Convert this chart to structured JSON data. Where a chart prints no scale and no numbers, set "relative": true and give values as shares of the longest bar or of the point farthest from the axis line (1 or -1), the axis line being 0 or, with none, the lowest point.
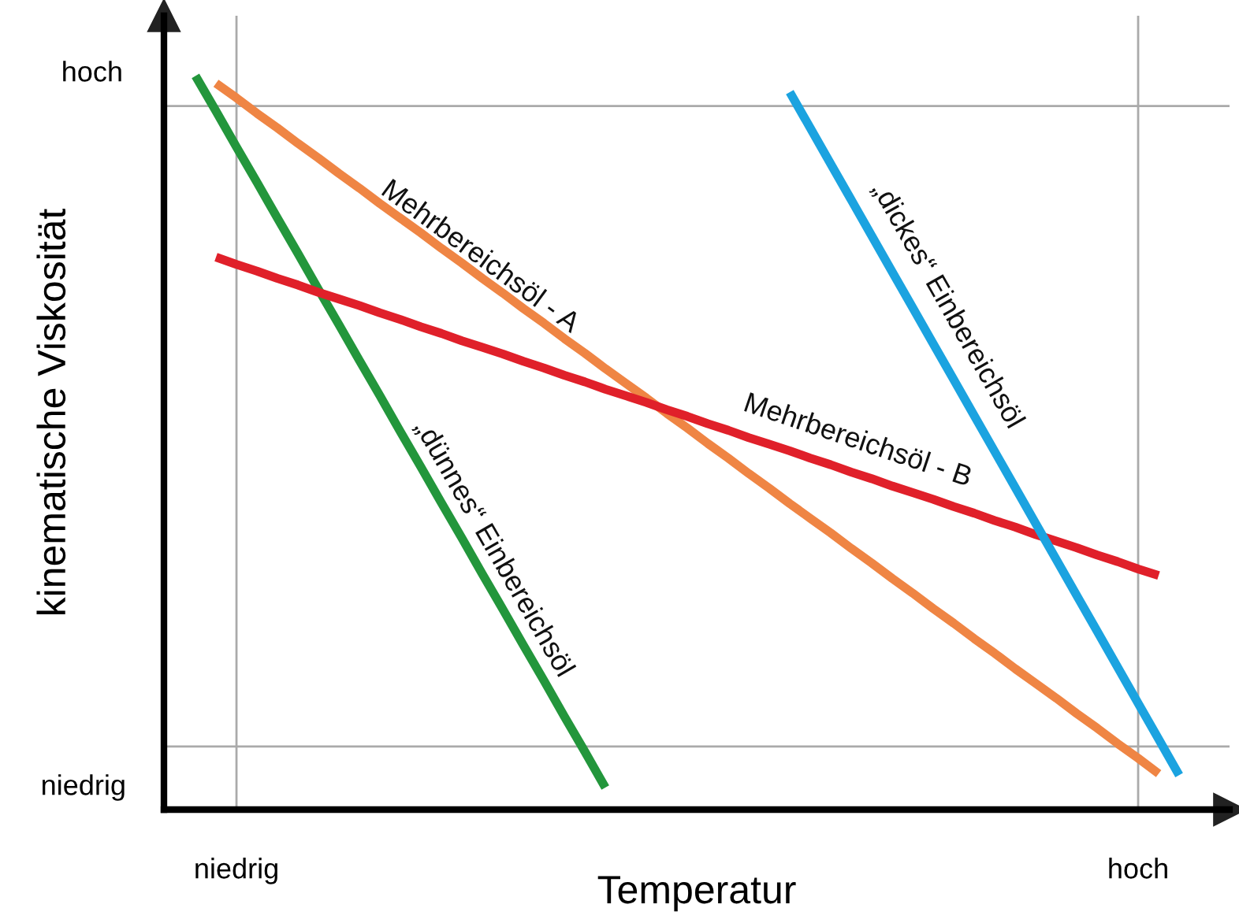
{
  "chart_data": {
    "type": "line",
    "relative": true,
    "xlabel": "Temperatur",
    "ylabel": "kinematische Viskosität",
    "categories": [
      null,
      null,
      "niedrig",
      null,
      null,
      null,
      null,
      null,
      null,
      null,
      null,
      null,
      null,
      null,
      null,
      null,
      null,
      null,
      null,
      null,
      null,
      null,
      null,
      null,
      null,
      null,
      null,
      null,
      null,
      null,
      null,
      null,
      null,
      null,
      null,
      null,
      null,
      null,
      null,
      null,
      null,
      null,
      null,
      null,
      null,
      null,
      "hoch",
      null,
      null
    ],
    "grid": "x",
    "legend": false,
    "marker": "none",
    "line_style": "solid",
    "annotations": [
      "hoch",
      "niedrig"
    ],
    "ref_lines": [
      {
        "axis": "y",
        "value": 0.086,
        "color": "#aaaaaa"
      },
      {
        "axis": "y",
        "value": 0.959,
        "color": "#aaaaaa"
      }
    ],
    "series": [
      {
        "name": "„dünnes“ Einbereichsöl",
        "color": "#23963c",
        "values": [
          1.0,
          0.952,
          0.903,
          0.855,
          0.806,
          0.758,
          0.709,
          0.661,
          0.612,
          0.564,
          0.515,
          0.467,
          0.418,
          0.37,
          0.321,
          0.273,
          0.224,
          0.176,
          0.127,
          0.079,
          0.03,
          null,
          null,
          null,
          null,
          null,
          null,
          null,
          null,
          null,
          null,
          null,
          null,
          null,
          null,
          null,
          null,
          null,
          null,
          null,
          null,
          null,
          null,
          null,
          null,
          null,
          null,
          null,
          null
        ]
      },
      {
        "name": "Mehrbereichsöl - A",
        "color": "#ef8544",
        "values": [
          null,
          0.99,
          0.97,
          0.949,
          0.929,
          0.908,
          0.888,
          0.867,
          0.847,
          0.826,
          0.806,
          0.786,
          0.765,
          0.745,
          0.724,
          0.704,
          0.683,
          0.663,
          0.642,
          0.622,
          0.601,
          0.581,
          0.561,
          0.54,
          0.52,
          0.499,
          0.479,
          0.458,
          0.438,
          0.417,
          0.397,
          0.377,
          0.356,
          0.336,
          0.315,
          0.295,
          0.274,
          0.254,
          0.233,
          0.213,
          0.192,
          0.172,
          0.152,
          0.131,
          0.111,
          0.09,
          0.07,
          0.049,
          null
        ]
      },
      {
        "name": "Mehrbereichsöl - B",
        "color": "#e0202a",
        "values": [
          null,
          0.753,
          0.743,
          0.734,
          0.724,
          0.715,
          0.705,
          0.696,
          0.687,
          0.677,
          0.668,
          0.658,
          0.649,
          0.639,
          0.63,
          0.621,
          0.611,
          0.602,
          0.592,
          0.583,
          0.573,
          0.564,
          0.555,
          0.545,
          0.536,
          0.526,
          0.517,
          0.507,
          0.498,
          0.489,
          0.479,
          0.47,
          0.46,
          0.451,
          0.441,
          0.432,
          0.423,
          0.413,
          0.404,
          0.394,
          0.385,
          0.375,
          0.366,
          0.357,
          0.347,
          0.338,
          0.328,
          0.319,
          null
        ]
      },
      {
        "name": "„dickes“ Einbereichsöl",
        "color": "#1ba3e0",
        "values": [
          null,
          null,
          null,
          null,
          null,
          null,
          null,
          null,
          null,
          null,
          null,
          null,
          null,
          null,
          null,
          null,
          null,
          null,
          null,
          null,
          null,
          null,
          null,
          null,
          null,
          null,
          null,
          null,
          null,
          0.978,
          0.929,
          0.88,
          0.831,
          0.782,
          0.733,
          0.684,
          0.635,
          0.586,
          0.537,
          0.488,
          0.439,
          0.39,
          0.341,
          0.292,
          0.243,
          0.194,
          0.145,
          0.096,
          0.047
        ]
      }
    ]
  }
}
